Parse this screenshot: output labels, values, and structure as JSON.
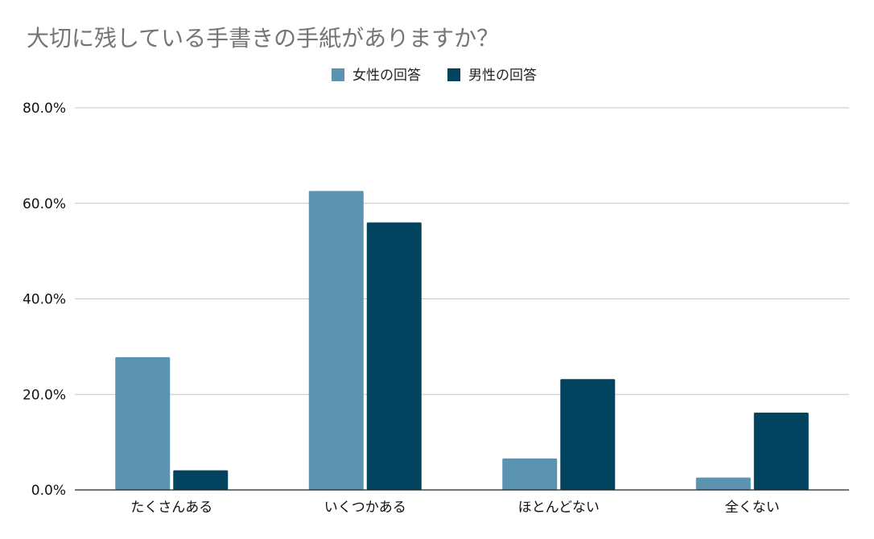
{
  "chart_data": {
    "type": "bar",
    "title": "大切に残している手書きの手紙がありますか？",
    "categories": [
      "たくさんある",
      "いくつかある",
      "ほとんどない",
      "全くない"
    ],
    "series": [
      {
        "name": "女性の回答",
        "color": "#5b93b0",
        "values": [
          27.8,
          62.6,
          6.6,
          2.6
        ]
      },
      {
        "name": "男性の回答",
        "color": "#02435f",
        "values": [
          4.1,
          56.0,
          23.2,
          16.2
        ]
      }
    ],
    "y_ticks": [
      "0.0%",
      "20.0%",
      "40.0%",
      "60.0%",
      "80.0%"
    ],
    "ylim": [
      0,
      80
    ],
    "grid": true,
    "legend_position": "top-center"
  }
}
